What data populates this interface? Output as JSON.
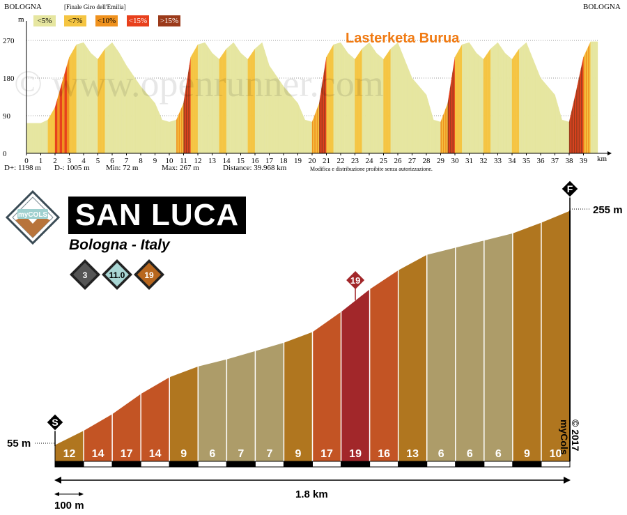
{
  "top_profile": {
    "start_label": "BOLOGNA",
    "end_label": "BOLOGNA",
    "subtitle": "[Finale Giro dell'Emilia]",
    "unit_y": "m",
    "unit_x": "km",
    "brand": "Lasterketa Burua",
    "watermark": "© www.openrunner.com",
    "stats": {
      "d_plus": "D+: 1198 m",
      "d_minus": "D-: 1005 m",
      "min": "Min: 72 m",
      "max": "Max: 267 m",
      "distance": "Distance: 39.968 km",
      "notice": "Modifica e distribuzione proibite senza autorizzazione."
    },
    "legend": [
      {
        "label": "<5%",
        "color": "#e6e6a0"
      },
      {
        "label": "<7%",
        "color": "#f5c542"
      },
      {
        "label": "<10%",
        "color": "#f0921e"
      },
      {
        "label": "<15%",
        "color": "#e8401c"
      },
      {
        "label": ">15%",
        "color": "#9b3a1a"
      }
    ]
  },
  "climb": {
    "title": "SAN LUCA",
    "location": "Bologna - Italy",
    "badges": [
      "3",
      "11.0",
      "19"
    ],
    "start_elev": "55 m",
    "end_elev": "255 m",
    "max_grade_marker": "19",
    "start_marker": "S",
    "finish_marker": "F",
    "total_distance": "1.8 km",
    "scale_label": "100 m",
    "copyright": "© 2017 myCols",
    "logo": "myCOLS"
  },
  "chart_data": [
    {
      "type": "area",
      "xlabel": "km",
      "ylabel": "m",
      "xlim": [
        0,
        40
      ],
      "ylim": [
        0,
        300
      ],
      "x_ticks": [
        0,
        1,
        2,
        3,
        4,
        5,
        6,
        7,
        8,
        9,
        10,
        11,
        12,
        13,
        14,
        15,
        16,
        17,
        18,
        19,
        20,
        21,
        22,
        23,
        24,
        25,
        26,
        27,
        28,
        29,
        30,
        31,
        32,
        33,
        34,
        35,
        36,
        37,
        38,
        39
      ],
      "y_ticks": [
        0,
        90,
        180,
        270
      ],
      "grid": true,
      "x": [
        0,
        1,
        1.5,
        2,
        3,
        3.5,
        4,
        4.5,
        5,
        5.5,
        6,
        6.5,
        7,
        8,
        9,
        9.5,
        10,
        10.5,
        11,
        11.5,
        12,
        12.5,
        13,
        13.5,
        14,
        14.5,
        15,
        15.5,
        16,
        16.5,
        17,
        18,
        19,
        19.5,
        20,
        20.5,
        21,
        21.5,
        22,
        22.5,
        23,
        23.5,
        24,
        24.5,
        25,
        25.5,
        26,
        27,
        28,
        28.5,
        29,
        29.5,
        30,
        30.5,
        31,
        31.5,
        32,
        32.5,
        33,
        33.5,
        34,
        34.5,
        35,
        36,
        37,
        37.5,
        38,
        38.5,
        39,
        39.5,
        40
      ],
      "y": [
        72,
        72,
        80,
        110,
        230,
        260,
        265,
        240,
        225,
        250,
        265,
        240,
        210,
        160,
        120,
        80,
        75,
        80,
        120,
        230,
        260,
        265,
        240,
        225,
        250,
        265,
        240,
        225,
        250,
        265,
        210,
        160,
        120,
        80,
        75,
        120,
        230,
        260,
        265,
        240,
        225,
        250,
        265,
        240,
        225,
        250,
        265,
        180,
        140,
        80,
        75,
        120,
        230,
        260,
        265,
        240,
        225,
        250,
        265,
        240,
        225,
        250,
        265,
        180,
        140,
        80,
        75,
        150,
        230,
        267,
        267
      ]
    },
    {
      "type": "bar",
      "title": "SAN LUCA",
      "xlabel": "1.8 km",
      "ylabel": "",
      "categories": [
        "1",
        "2",
        "3",
        "4",
        "5",
        "6",
        "7",
        "8",
        "9",
        "10",
        "11",
        "12",
        "13",
        "14",
        "15",
        "16",
        "17",
        "18"
      ],
      "values": [
        12,
        14,
        17,
        14,
        9,
        6,
        7,
        7,
        9,
        17,
        19,
        16,
        13,
        6,
        6,
        6,
        9,
        10
      ],
      "elevation_start": 55,
      "elevation_end": 255,
      "segment_length_m": 100,
      "colors": {
        "low": "#ad9c69",
        "mid": "#b0761f",
        "high": "#c35424",
        "max": "#a2272a"
      }
    }
  ]
}
